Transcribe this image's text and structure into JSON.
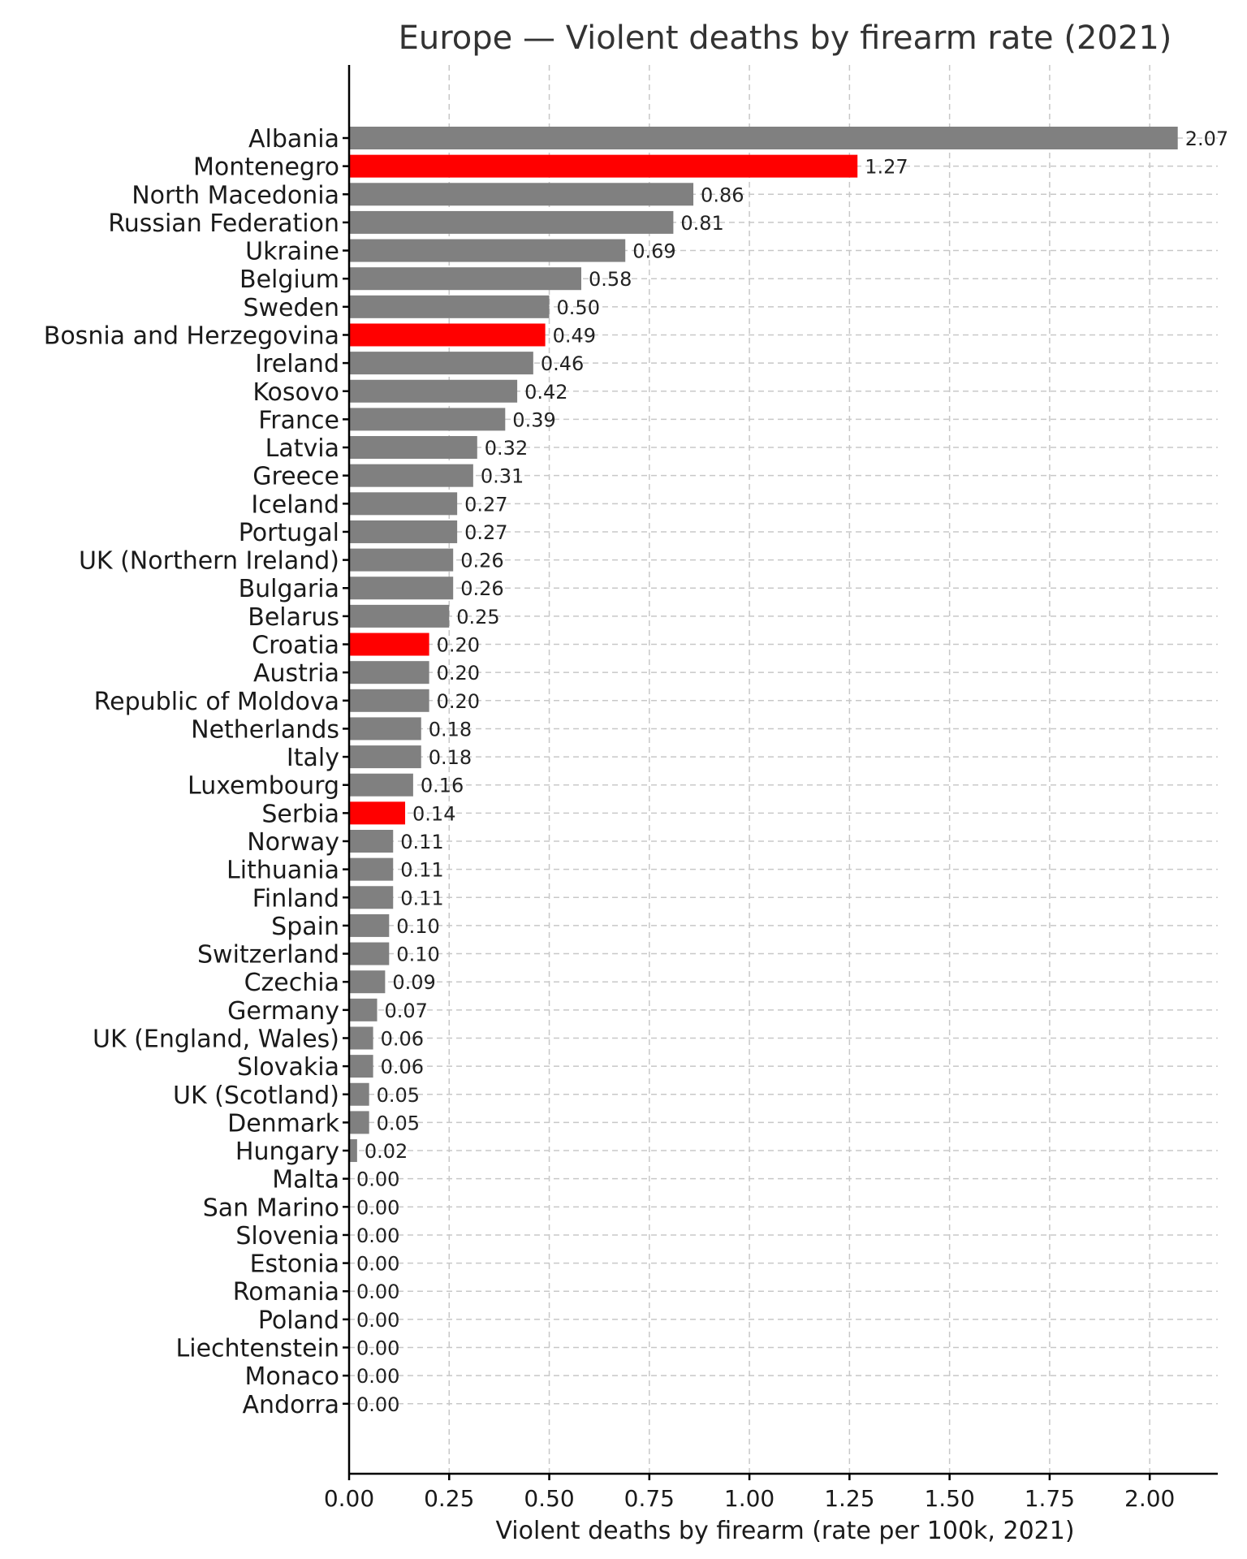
{
  "chart_data": {
    "type": "bar",
    "orientation": "horizontal",
    "title": "Europe — Violent deaths by firearm rate (2021)",
    "xlabel": "Violent deaths by firearm (rate per 100k, 2021)",
    "ylabel": "",
    "xlim": [
      0,
      2.17
    ],
    "xticks": [
      "0.00",
      "0.25",
      "0.50",
      "0.75",
      "1.00",
      "1.25",
      "1.50",
      "1.75",
      "2.00"
    ],
    "grid": true,
    "default_color": "#808080",
    "highlight_color": "#ff0000",
    "categories": [
      "Albania",
      "Montenegro",
      "North Macedonia",
      "Russian Federation",
      "Ukraine",
      "Belgium",
      "Sweden",
      "Bosnia and Herzegovina",
      "Ireland",
      "Kosovo",
      "France",
      "Latvia",
      "Greece",
      "Iceland",
      "Portugal",
      "UK (Northern Ireland)",
      "Bulgaria",
      "Belarus",
      "Croatia",
      "Austria",
      "Republic of Moldova",
      "Netherlands",
      "Italy",
      "Luxembourg",
      "Serbia",
      "Norway",
      "Lithuania",
      "Finland",
      "Spain",
      "Switzerland",
      "Czechia",
      "Germany",
      "UK (England, Wales)",
      "Slovakia",
      "UK (Scotland)",
      "Denmark",
      "Hungary",
      "Malta",
      "San Marino",
      "Slovenia",
      "Estonia",
      "Romania",
      "Poland",
      "Liechtenstein",
      "Monaco",
      "Andorra"
    ],
    "values": [
      2.07,
      1.27,
      0.86,
      0.81,
      0.69,
      0.58,
      0.5,
      0.49,
      0.46,
      0.42,
      0.39,
      0.32,
      0.31,
      0.27,
      0.27,
      0.26,
      0.26,
      0.25,
      0.2,
      0.2,
      0.2,
      0.18,
      0.18,
      0.16,
      0.14,
      0.11,
      0.11,
      0.11,
      0.1,
      0.1,
      0.09,
      0.07,
      0.06,
      0.06,
      0.05,
      0.05,
      0.02,
      0.0,
      0.0,
      0.0,
      0.0,
      0.0,
      0.0,
      0.0,
      0.0,
      0.0
    ],
    "value_labels": [
      "2.07",
      "1.27",
      "0.86",
      "0.81",
      "0.69",
      "0.58",
      "0.50",
      "0.49",
      "0.46",
      "0.42",
      "0.39",
      "0.32",
      "0.31",
      "0.27",
      "0.27",
      "0.26",
      "0.26",
      "0.25",
      "0.20",
      "0.20",
      "0.20",
      "0.18",
      "0.18",
      "0.16",
      "0.14",
      "0.11",
      "0.11",
      "0.11",
      "0.10",
      "0.10",
      "0.09",
      "0.07",
      "0.06",
      "0.06",
      "0.05",
      "0.05",
      "0.02",
      "0.00",
      "0.00",
      "0.00",
      "0.00",
      "0.00",
      "0.00",
      "0.00",
      "0.00",
      "0.00"
    ],
    "highlighted": [
      "Montenegro",
      "Bosnia and Herzegovina",
      "Croatia",
      "Serbia"
    ]
  }
}
